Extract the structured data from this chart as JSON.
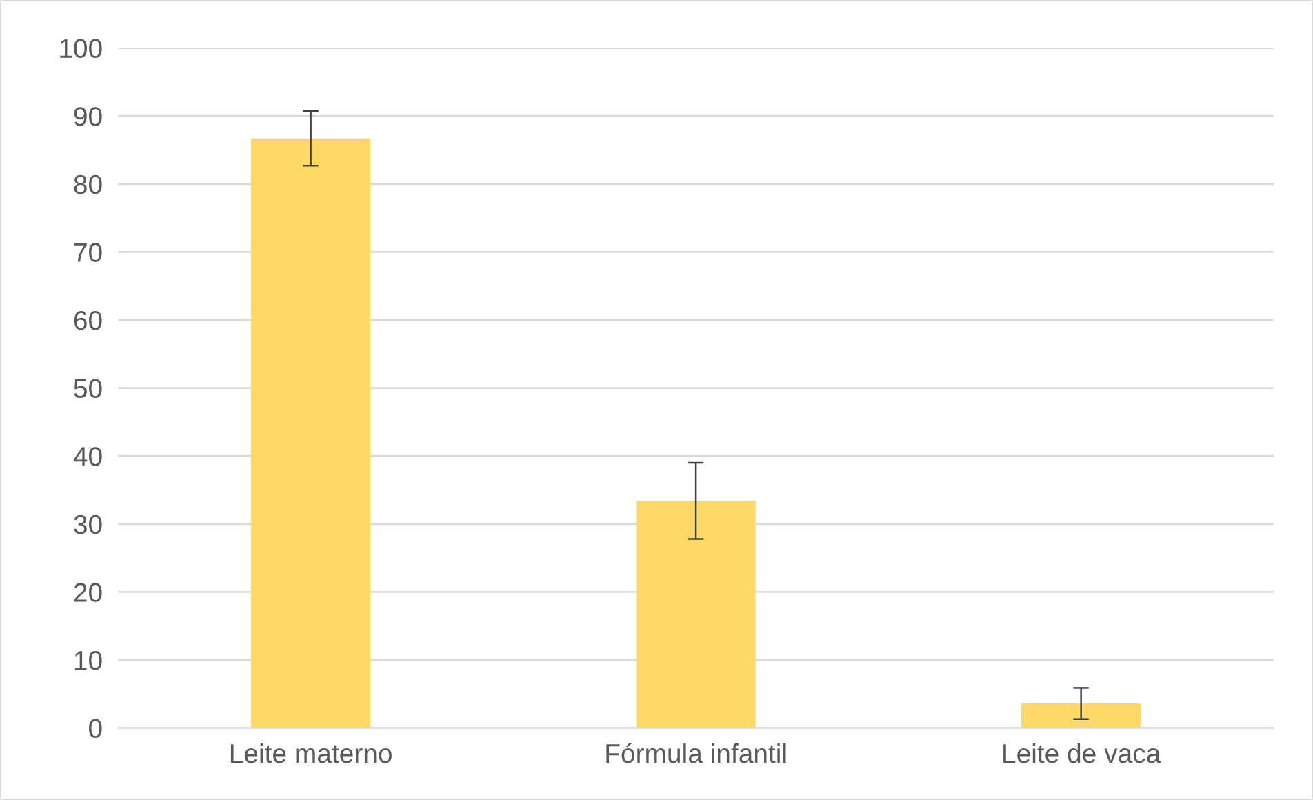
{
  "chart_data": {
    "type": "bar",
    "categories": [
      "Leite materno",
      "Fórmula infantil",
      "Leite de vaca"
    ],
    "values": [
      86.7,
      33.4,
      3.6
    ],
    "errors": [
      4,
      5.6,
      2.3
    ],
    "color": "#ffd966",
    "ylim": [
      0,
      100
    ],
    "yticks": [
      0,
      10,
      20,
      30,
      40,
      50,
      60,
      70,
      80,
      90,
      100
    ],
    "grid": "y"
  }
}
